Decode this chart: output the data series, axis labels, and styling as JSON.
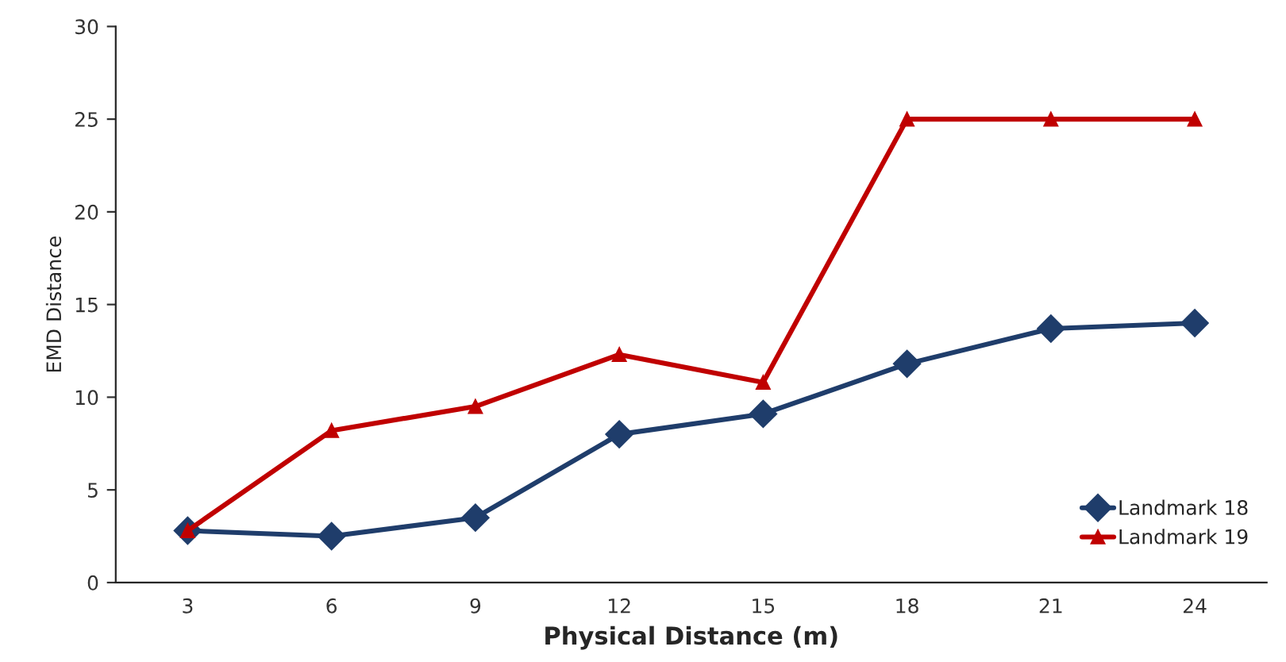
{
  "chart_data": {
    "type": "line",
    "xlabel": "Physical Distance (m)",
    "ylabel": "EMD Distance",
    "categories": [
      "3",
      "6",
      "9",
      "12",
      "15",
      "18",
      "21",
      "24"
    ],
    "series": [
      {
        "name": "Landmark 18",
        "color": "#1f3d6b",
        "marker": "diamond",
        "values": [
          2.8,
          2.5,
          3.5,
          8.0,
          9.1,
          11.8,
          13.7,
          14.0
        ]
      },
      {
        "name": "Landmark 19",
        "color": "#c00000",
        "marker": "triangle",
        "values": [
          2.8,
          8.2,
          9.5,
          12.3,
          10.8,
          25,
          25,
          25
        ]
      }
    ],
    "ylim": [
      0,
      30
    ],
    "yticks": [
      0,
      5,
      10,
      15,
      20,
      25,
      30
    ],
    "grid": false,
    "legend": "bottom right",
    "line_style": "solid"
  }
}
